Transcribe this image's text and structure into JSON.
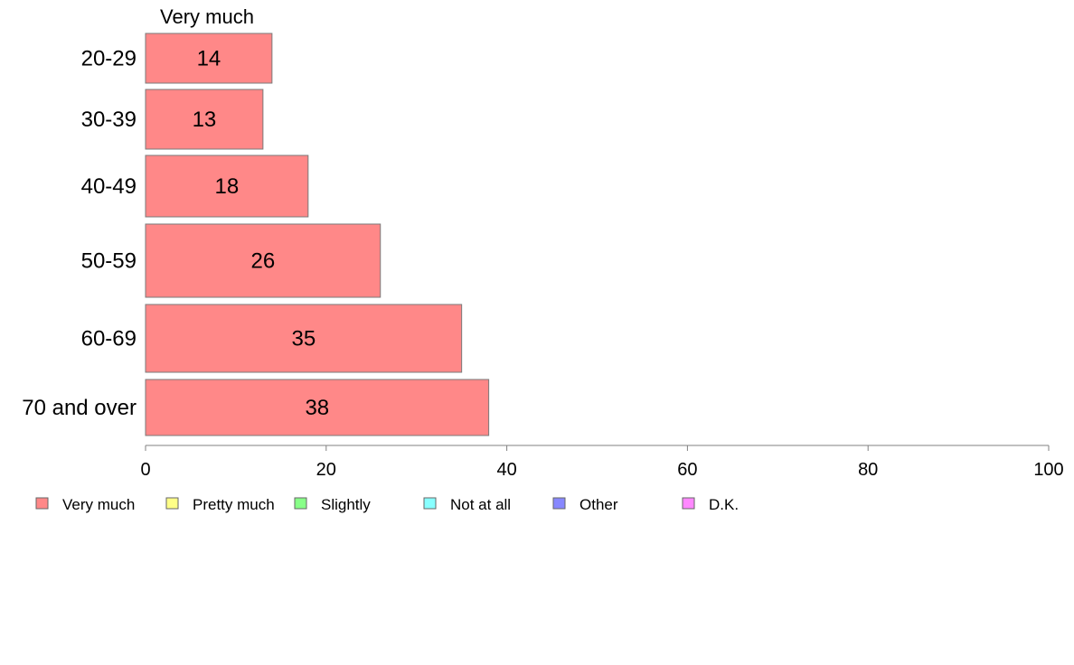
{
  "chart_data": {
    "type": "bar",
    "orientation": "horizontal",
    "stacked": true,
    "series_title": "Very much",
    "categories": [
      "20-29",
      "30-39",
      "40-49",
      "50-59",
      "60-69",
      "70 and over"
    ],
    "series": [
      {
        "name": "Very much",
        "values": [
          14,
          13,
          18,
          26,
          35,
          38
        ],
        "color": "#ff8888"
      }
    ],
    "xlim": [
      0,
      100
    ],
    "xticks": [
      0,
      20,
      40,
      60,
      80,
      100
    ],
    "grid": false,
    "legend_position": "bottom-left",
    "legend": [
      {
        "label": "Very much",
        "color": "#ff8888"
      },
      {
        "label": "Pretty much",
        "color": "#ffff88"
      },
      {
        "label": "Slightly",
        "color": "#88ff88"
      },
      {
        "label": "Not at all",
        "color": "#88ffff"
      },
      {
        "label": "Other",
        "color": "#8888ff"
      },
      {
        "label": "D.K.",
        "color": "#ff88ff"
      }
    ]
  }
}
